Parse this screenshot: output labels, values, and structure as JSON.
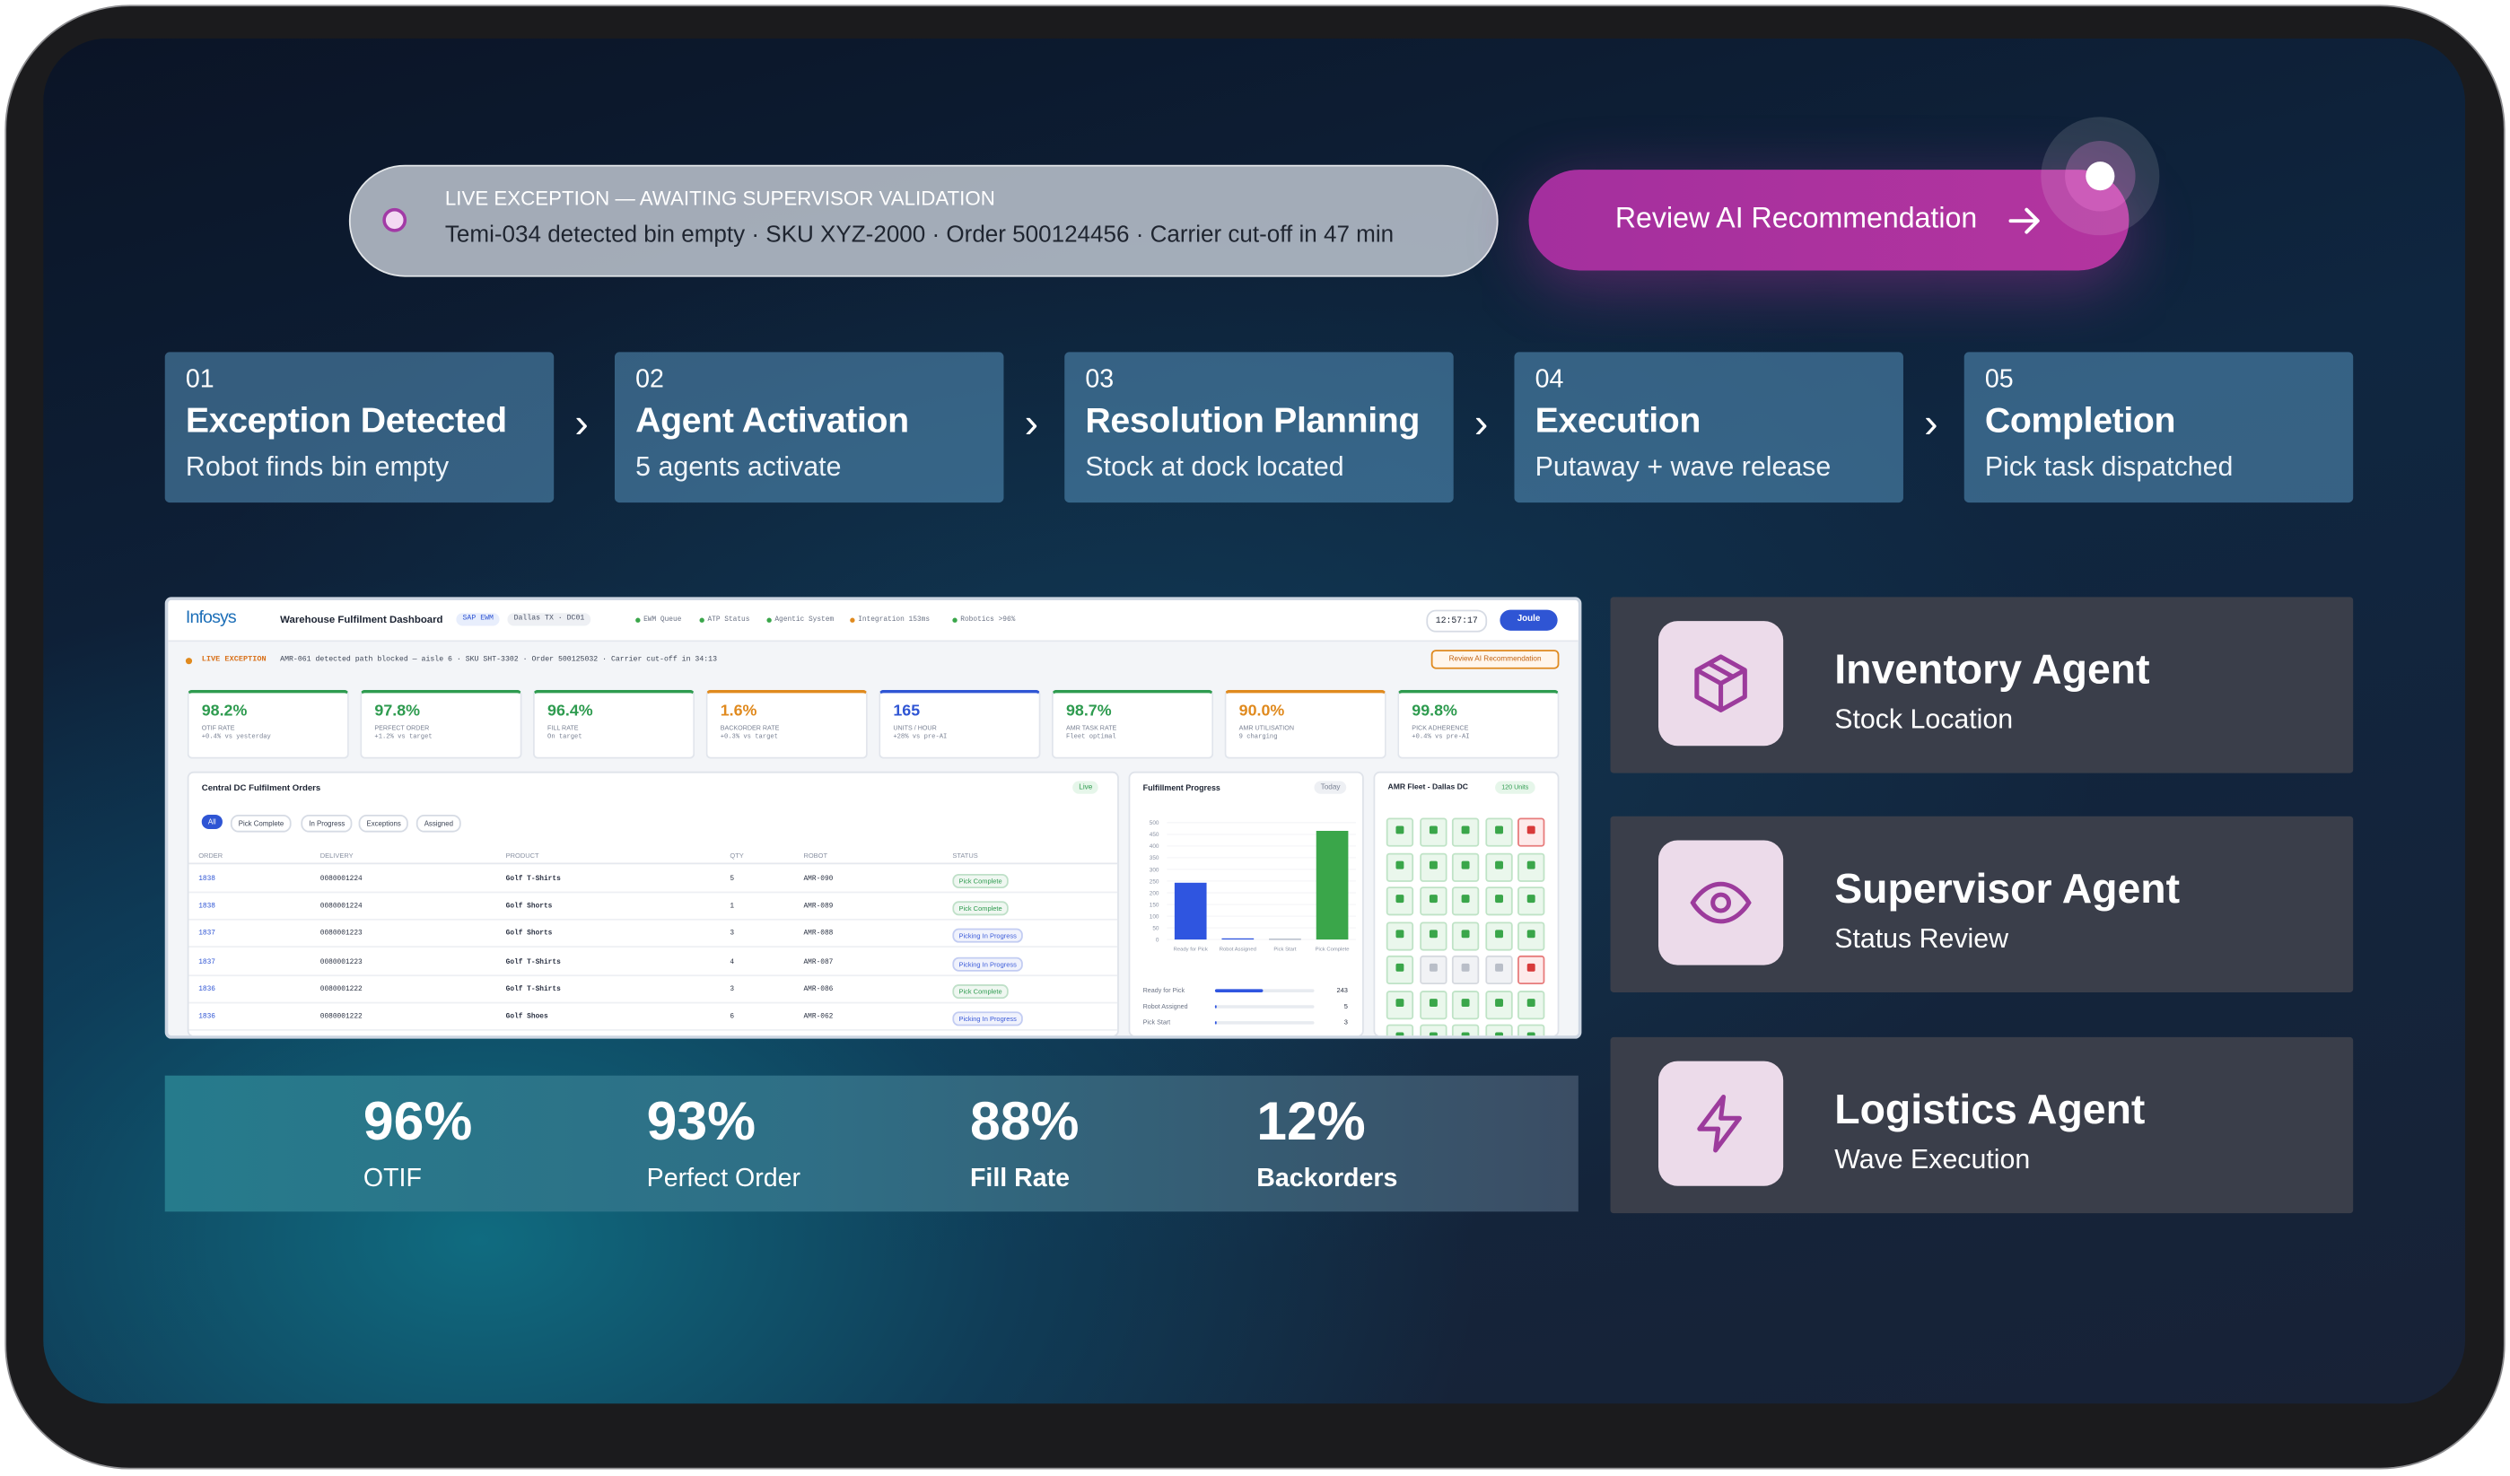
{
  "alert": {
    "label": "LIVE EXCEPTION — AWAITING SUPERVISOR VALIDATION",
    "message": "Temi-034 detected bin empty · SKU XYZ-2000 · Order 500124456 · Carrier cut-off in 47 min"
  },
  "button": "Review AI Recommendation",
  "steps": [
    {
      "number": "01",
      "title": "Exception Detected",
      "subtitle": "Robot finds bin empty"
    },
    {
      "number": "02",
      "title": "Agent Activation",
      "subtitle": "5 agents activate"
    },
    {
      "number": "03",
      "title": "Resolution Planning",
      "subtitle": "Stock at dock located"
    },
    {
      "number": "04",
      "title": "Execution",
      "subtitle": "Putaway + wave release"
    },
    {
      "number": "05",
      "title": "Completion",
      "subtitle": "Pick task dispatched"
    }
  ],
  "dashboard": {
    "brand": "Infosys",
    "title": "Warehouse Fulfilment Dashboard",
    "tags": [
      "SAP EWM",
      "Dallas TX · DC01"
    ],
    "status": [
      "EWM Queue",
      "ATP Status",
      "Agentic System",
      "Integration 153ms",
      "Robotics >96%"
    ],
    "time": "12:57:17",
    "assistant": "Joule",
    "exception": {
      "label": "LIVE EXCEPTION",
      "message": "AMR-061 detected path blocked — aisle 6 · SKU SHT-3302 · Order 500125032 · Carrier cut-off in 34:13",
      "button": "Review AI Recommendation"
    },
    "kpis": [
      {
        "value": "98.2%",
        "label": "OTIF RATE",
        "note": "+0.4% vs yesterday",
        "color": "#2e9b4f"
      },
      {
        "value": "97.8%",
        "label": "PERFECT ORDER",
        "note": "+1.2% vs target",
        "color": "#2e9b4f"
      },
      {
        "value": "96.4%",
        "label": "FILL RATE",
        "note": "On target",
        "color": "#2e9b4f"
      },
      {
        "value": "1.6%",
        "label": "BACKORDER RATE",
        "note": "+0.3% vs target",
        "color": "#e08a1e"
      },
      {
        "value": "165",
        "label": "UNITS / HOUR",
        "note": "+28% vs pre-AI",
        "color": "#2f55d4"
      },
      {
        "value": "98.7%",
        "label": "AMR TASK RATE",
        "note": "Fleet optimal",
        "color": "#2e9b4f"
      },
      {
        "value": "90.0%",
        "label": "AMR UTILISATION",
        "note": "9 charging",
        "color": "#e08a1e"
      },
      {
        "value": "99.8%",
        "label": "PICK ADHERENCE",
        "note": "+0.4% vs pre-AI",
        "color": "#2e9b4f"
      }
    ],
    "orders": {
      "title": "Central DC Fulfilment Orders",
      "badge": "Live",
      "filters": [
        "All",
        "Pick Complete",
        "In Progress",
        "Exceptions",
        "Assigned"
      ],
      "columns": [
        "ORDER",
        "DELIVERY",
        "PRODUCT",
        "QTY",
        "ROBOT",
        "STATUS"
      ],
      "rows": [
        [
          "1838",
          "0080001224",
          "Golf T-Shirts",
          "5",
          "AMR-090",
          "Pick Complete"
        ],
        [
          "1838",
          "0080001224",
          "Golf Shorts",
          "1",
          "AMR-089",
          "Pick Complete"
        ],
        [
          "1837",
          "0080001223",
          "Golf Shorts",
          "3",
          "AMR-088",
          "Picking In Progress"
        ],
        [
          "1837",
          "0080001223",
          "Golf T-Shirts",
          "4",
          "AMR-087",
          "Picking In Progress"
        ],
        [
          "1836",
          "0080001222",
          "Golf T-Shirts",
          "3",
          "AMR-086",
          "Pick Complete"
        ],
        [
          "1836",
          "0080001222",
          "Golf Shoes",
          "6",
          "AMR-062",
          "Picking In Progress"
        ]
      ],
      "status_colors": {
        "Pick Complete": "#2e9b4f",
        "Picking In Progress": "#3b5bd9"
      }
    },
    "progress": {
      "title": "Fulfillment Progress",
      "badge": "Today",
      "chart": {
        "type": "bar",
        "categories": [
          "Ready for Pick",
          "Robot Assigned",
          "Pick Start",
          "Pick Complete"
        ],
        "values": [
          243,
          5,
          3,
          465
        ],
        "colors": [
          "#2f55e0",
          "#2f55e0",
          "#9aa3b5",
          "#3aa64a"
        ],
        "ylim": [
          0,
          500
        ],
        "yticks": [
          0,
          50,
          100,
          150,
          200,
          250,
          300,
          350,
          400,
          450,
          500
        ],
        "grid": true
      },
      "summary": [
        {
          "label": "Ready for Pick",
          "value": 243
        },
        {
          "label": "Robot Assigned",
          "value": 5
        },
        {
          "label": "Pick Start",
          "value": 3
        }
      ]
    },
    "fleet": {
      "title": "AMR Fleet - Dallas DC",
      "badge": "120 Units"
    }
  },
  "stats": [
    {
      "value": "96%",
      "label": "OTIF"
    },
    {
      "value": "93%",
      "label": "Perfect Order"
    },
    {
      "value": "88%",
      "label": "Fill Rate"
    },
    {
      "value": "12%",
      "label": "Backorders"
    }
  ],
  "agents": [
    {
      "title": "Inventory Agent",
      "subtitle": "Stock Location"
    },
    {
      "title": "Supervisor Agent",
      "subtitle": "Status Review"
    },
    {
      "title": "Logistics Agent",
      "subtitle": "Wave Execution"
    }
  ]
}
